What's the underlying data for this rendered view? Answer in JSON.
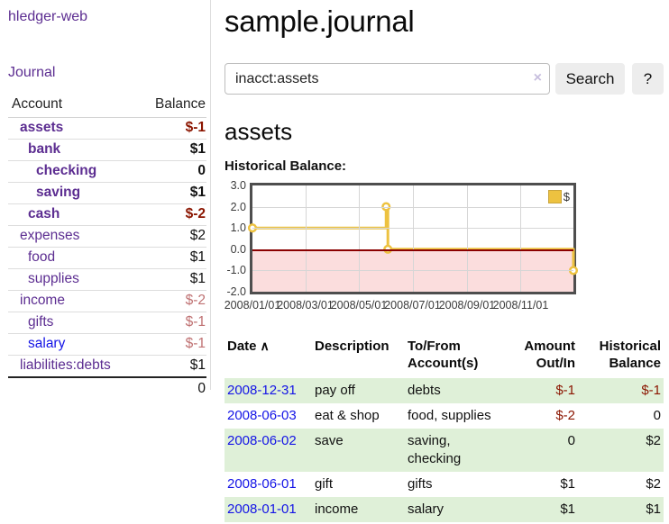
{
  "app": {
    "brand": "hledger-web",
    "nav": {
      "journal": "Journal"
    }
  },
  "sidebar": {
    "columns": {
      "account": "Account",
      "balance": "Balance"
    },
    "accounts": [
      {
        "name": "assets",
        "balance": "$-1"
      },
      {
        "name": "bank",
        "balance": "$1"
      },
      {
        "name": "checking",
        "balance": "0"
      },
      {
        "name": "saving",
        "balance": "$1"
      },
      {
        "name": "cash",
        "balance": "$-2"
      },
      {
        "name": "expenses",
        "balance": "$2"
      },
      {
        "name": "food",
        "balance": "$1"
      },
      {
        "name": "supplies",
        "balance": "$1"
      },
      {
        "name": "income",
        "balance": "$-2"
      },
      {
        "name": "gifts",
        "balance": "$-1"
      },
      {
        "name": "salary",
        "balance": "$-1"
      },
      {
        "name": "liabilities:debts",
        "balance": "$1"
      }
    ],
    "total": "0"
  },
  "header": {
    "title": "sample.journal"
  },
  "search": {
    "value": "inacct:assets",
    "clear_icon": "×",
    "button": "Search",
    "help_button": "?"
  },
  "account_page": {
    "heading": "assets"
  },
  "chart_data": {
    "type": "line",
    "step": true,
    "title": "Historical Balance:",
    "series": [
      {
        "name": "$",
        "color": "#edc240",
        "points": [
          {
            "date": "2008-01-01",
            "y": 1
          },
          {
            "date": "2008-06-01",
            "y": 2
          },
          {
            "date": "2008-06-03",
            "y": 0
          },
          {
            "date": "2008-12-31",
            "y": -1
          }
        ]
      }
    ],
    "xlim": [
      "2008-01-01",
      "2008-12-31"
    ],
    "ylim": [
      -2,
      3
    ],
    "yticks": [
      "3.0",
      "2.0",
      "1.0",
      "0.0",
      "-1.0",
      "-2.0"
    ],
    "xticks": [
      "2008/01/01",
      "2008/03/01",
      "2008/05/01",
      "2008/07/01",
      "2008/09/01",
      "2008/11/01"
    ],
    "grid": true,
    "legend_position": "top-right",
    "zero_line_color": "#8b0000",
    "negative_region_color": "#fbdddd"
  },
  "register": {
    "columns": {
      "date": "Date",
      "sort_icon": "∧",
      "description": "Description",
      "accounts": "To/From Account(s)",
      "amount": "Amount Out/In",
      "balance": "Historical Balance"
    },
    "rows": [
      {
        "date": "2008-12-31",
        "description": "pay off",
        "accounts": "debts",
        "amount": "$-1",
        "balance": "$-1"
      },
      {
        "date": "2008-06-03",
        "description": "eat & shop",
        "accounts": "food, supplies",
        "amount": "$-2",
        "balance": "0"
      },
      {
        "date": "2008-06-02",
        "description": "save",
        "accounts": "saving, checking",
        "amount": "0",
        "balance": "$2"
      },
      {
        "date": "2008-06-01",
        "description": "gift",
        "accounts": "gifts",
        "amount": "$1",
        "balance": "$2"
      },
      {
        "date": "2008-01-01",
        "description": "income",
        "accounts": "salary",
        "amount": "$1",
        "balance": "$1"
      }
    ]
  }
}
